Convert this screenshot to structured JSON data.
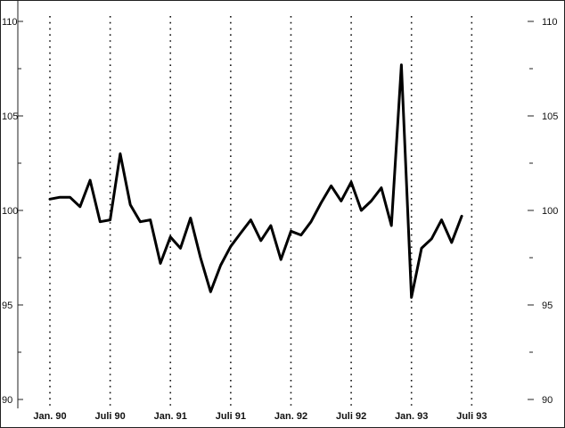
{
  "chart_data": {
    "type": "line",
    "title": "",
    "xlabel": "",
    "ylabel": "",
    "ylim": [
      90,
      110
    ],
    "y_ticks_labeled": [
      90,
      95,
      100,
      105,
      110
    ],
    "y_ticks_minor": [
      92.5,
      97.5,
      102.5,
      107.5
    ],
    "x_start": "Jan. 90",
    "x_frequency": "monthly",
    "x_ticks": [
      {
        "label": "Jan. 90",
        "month_index": 0
      },
      {
        "label": "Juli 90",
        "month_index": 6
      },
      {
        "label": "Jan. 91",
        "month_index": 12
      },
      {
        "label": "Juli 91",
        "month_index": 18
      },
      {
        "label": "Jan. 92",
        "month_index": 24
      },
      {
        "label": "Juli 92",
        "month_index": 30
      },
      {
        "label": "Jan. 93",
        "month_index": 36
      },
      {
        "label": "Juli 93",
        "month_index": 42
      }
    ],
    "grid": "vertical dotted at x ticks",
    "series": [
      {
        "values": [
          100.6,
          100.7,
          100.7,
          100.2,
          101.6,
          99.4,
          99.5,
          103.0,
          100.3,
          99.4,
          99.5,
          97.2,
          98.6,
          98.0,
          99.6,
          97.5,
          95.7,
          97.1,
          98.1,
          98.8,
          99.5,
          98.4,
          99.2,
          97.4,
          98.9,
          98.7,
          99.4,
          100.4,
          101.3,
          100.5,
          101.5,
          100.0,
          100.5,
          101.2,
          99.2,
          107.7,
          95.4,
          98.0,
          98.5,
          99.5,
          98.3,
          99.7
        ]
      }
    ]
  }
}
